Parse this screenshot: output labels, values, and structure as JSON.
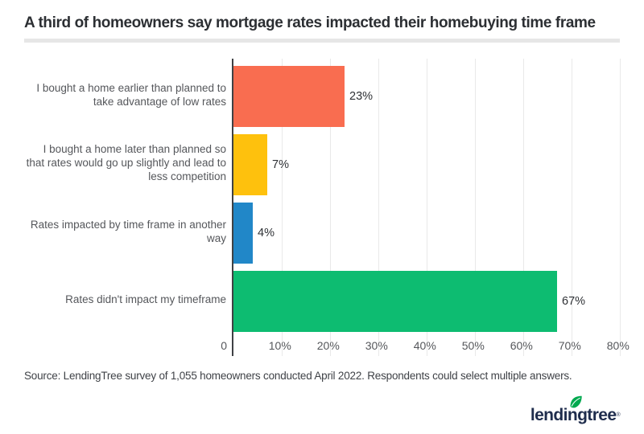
{
  "header": {
    "title": "A third of homeowners say mortgage rates impacted their homebuying time frame"
  },
  "chart_data": {
    "type": "bar",
    "orientation": "horizontal",
    "categories": [
      "I bought a home earlier than planned to take advantage of low rates",
      "I bought a home later than planned so that rates would go up slightly and lead to less competition",
      "Rates impacted by time frame in another way",
      "Rates didn't impact my timeframe"
    ],
    "values": [
      23,
      7,
      4,
      67
    ],
    "value_labels": [
      "23%",
      "7%",
      "4%",
      "67%"
    ],
    "bar_colors": [
      "#f96d50",
      "#fec10d",
      "#2187c8",
      "#0dbc71"
    ],
    "xlim": [
      0,
      80
    ],
    "tick_values": [
      0,
      10,
      20,
      30,
      40,
      50,
      60,
      70,
      80
    ],
    "tick_labels": [
      "0",
      "10%",
      "20%",
      "30%",
      "40%",
      "50%",
      "60%",
      "70%",
      "80%"
    ],
    "grid": "vertical gridlines every 10%",
    "legend": "none",
    "title": "A third of homeowners say mortgage rates impacted their homebuying time frame"
  },
  "footer": {
    "source": "Source: LendingTree survey of 1,055 homeowners conducted April 2022. Respondents could select multiple answers.",
    "logo_text": "lendingtree",
    "logo_registered": "®"
  },
  "colors": {
    "axis_line": "#3f4144",
    "gridline": "#e9e9e9",
    "label_text": "#55575b",
    "title_text": "#2c2f33",
    "divider": "#e6e6e6",
    "logo_navy": "#1f2d4d",
    "leaf_green": "#00a94f"
  }
}
